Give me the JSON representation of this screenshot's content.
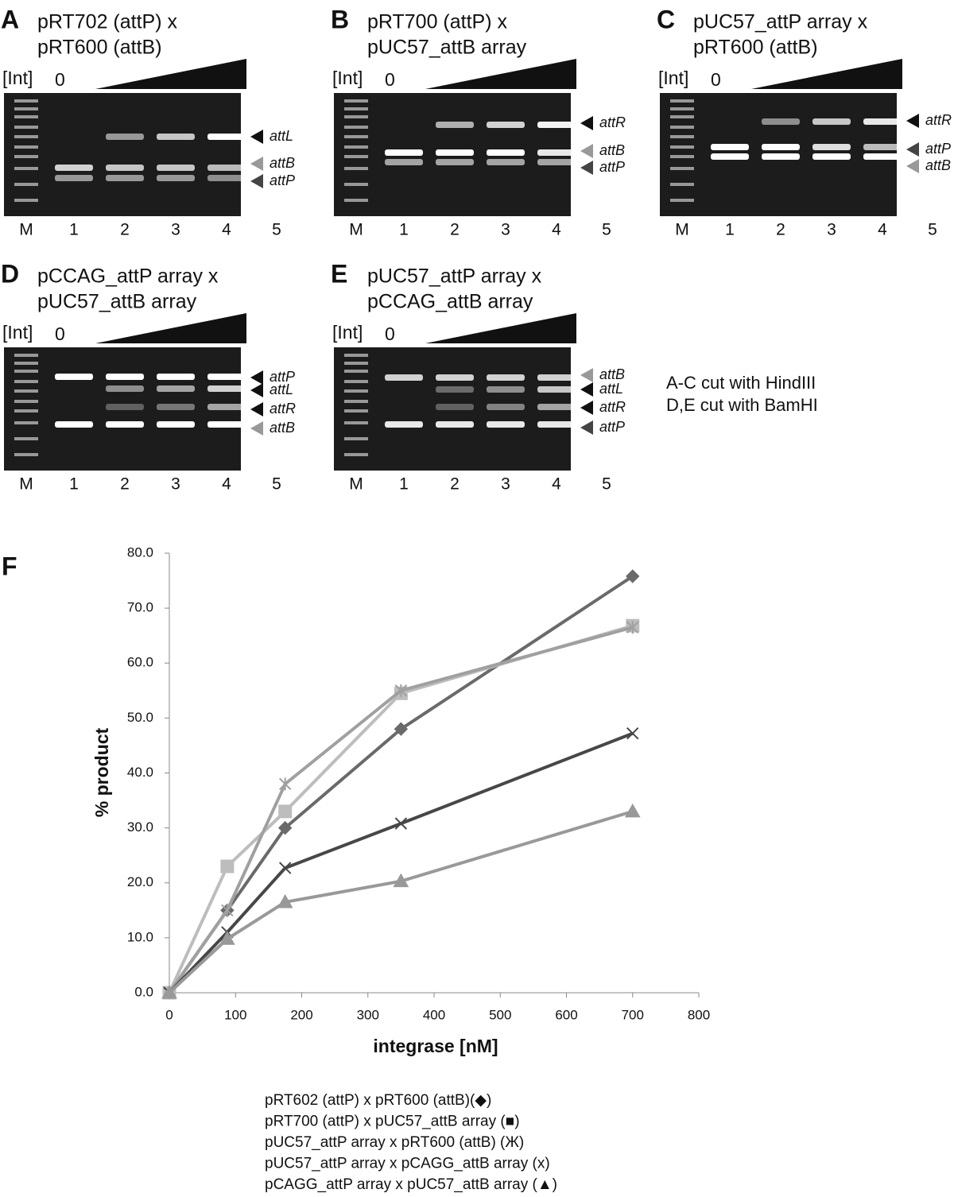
{
  "panels": [
    {
      "letter": "A",
      "title": [
        "pRT702 (attP) x",
        "pRT600 (attB)"
      ],
      "int_label": "[Int]",
      "zero": "0",
      "lanes": [
        "M",
        "1",
        "2",
        "3",
        "4",
        "5"
      ],
      "bands": [
        "attL",
        "attB",
        "attP"
      ]
    },
    {
      "letter": "B",
      "title": [
        "pRT700 (attP) x",
        "pUC57_attB array"
      ],
      "int_label": "[Int]",
      "zero": "0",
      "lanes": [
        "M",
        "1",
        "2",
        "3",
        "4",
        "5"
      ],
      "bands": [
        "attR",
        "attB",
        "attP"
      ]
    },
    {
      "letter": "C",
      "title": [
        "pUC57_attP array x",
        "pRT600 (attB)"
      ],
      "int_label": "[Int]",
      "zero": "0",
      "lanes": [
        "M",
        "1",
        "2",
        "3",
        "4",
        "5"
      ],
      "bands": [
        "attR",
        "attP",
        "attB"
      ]
    },
    {
      "letter": "D",
      "title": [
        "pCCAG_attP array x",
        "pUC57_attB array"
      ],
      "int_label": "[Int]",
      "zero": "0",
      "lanes": [
        "M",
        "1",
        "2",
        "3",
        "4",
        "5"
      ],
      "bands": [
        "attP",
        "attL",
        "attR",
        "attB"
      ]
    },
    {
      "letter": "E",
      "title": [
        "pUC57_attP array x",
        "pCCAG_attB array"
      ],
      "int_label": "[Int]",
      "zero": "0",
      "lanes": [
        "M",
        "1",
        "2",
        "3",
        "4",
        "5"
      ],
      "bands": [
        "attB",
        "attL",
        "attR",
        "attP"
      ]
    }
  ],
  "note": [
    "A-C cut with HindIII",
    "D,E cut with BamHI"
  ],
  "chart_data": {
    "type": "line",
    "panel_letter": "F",
    "x_label": "integrase [nM]",
    "y_label": "% product",
    "x": [
      0,
      87.5,
      175,
      350,
      700
    ],
    "series": [
      {
        "name": "pRT602 (attP) x pRT600 (attB)(◆)",
        "color": "#6a6a6a",
        "marker": "diamond",
        "values": [
          0,
          15,
          30,
          48,
          75.8
        ]
      },
      {
        "name": "pRT700 (attP) x pUC57_attB array  (■)",
        "color": "#bdbdbd",
        "marker": "square",
        "values": [
          0,
          23,
          33,
          54.5,
          66.8
        ]
      },
      {
        "name": "pUC57_attP array x pRT600 (attB) (Ж)",
        "color": "#a0a0a0",
        "marker": "star",
        "values": [
          0,
          15,
          38,
          55,
          66.5
        ]
      },
      {
        "name": "pUC57_attP array x pCAGG_attB array (x)",
        "color": "#474747",
        "marker": "x",
        "values": [
          0,
          11,
          22.7,
          30.8,
          47.2
        ]
      },
      {
        "name": "pCAGG_attP array x pUC57_attB array (▲)",
        "color": "#999999",
        "marker": "triangle",
        "values": [
          0,
          9.8,
          16.5,
          20.3,
          33
        ]
      }
    ],
    "xlim": [
      0,
      800
    ],
    "xticks": [
      0,
      100,
      200,
      300,
      400,
      500,
      600,
      700,
      800
    ],
    "ylim": [
      0,
      80
    ],
    "yticks": [
      {
        "value": 0,
        "label": "0.0"
      },
      {
        "value": 10,
        "label": "10.0"
      },
      {
        "value": 20,
        "label": "20.0"
      },
      {
        "value": 30,
        "label": "30.0"
      },
      {
        "value": 40,
        "label": "40.0"
      },
      {
        "value": 50,
        "label": "50.0"
      },
      {
        "value": 60,
        "label": "60.0"
      },
      {
        "value": 70,
        "label": "70.0"
      },
      {
        "value": 80,
        "label": "80.0"
      }
    ]
  }
}
